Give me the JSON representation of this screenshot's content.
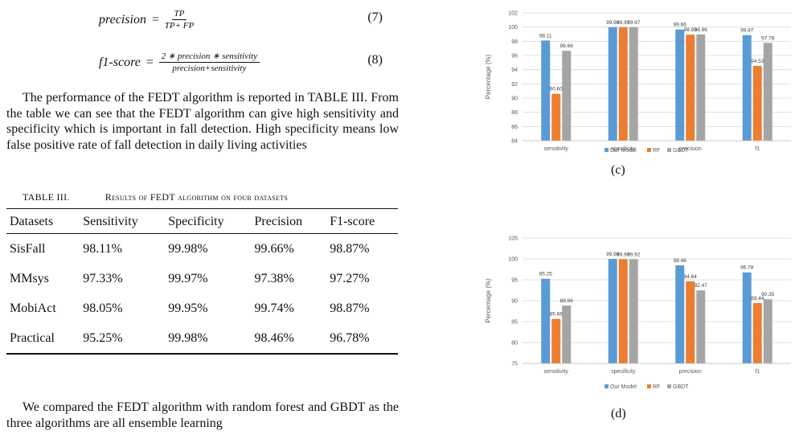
{
  "equations": [
    {
      "lhs": "precision",
      "numerator": "TP",
      "denominator": "TP+ FP",
      "number": "(7)"
    },
    {
      "lhs": "f1-score",
      "numerator": "2 ∗ precision ∗ sensitivity",
      "denominator": "precision+sensitivity",
      "number": "(8)"
    }
  ],
  "paragraph1": "The performance of the FEDT algorithm is reported in TABLE III. From the table we can see that the FEDT algorithm can give high sensitivity and specificity which is important in fall detection. High specificity means low false positive rate of fall detection in daily living activities",
  "table": {
    "label": "TABLE III.",
    "title": "Results of FEDT algorithm on four datasets",
    "headers": [
      "Datasets",
      "Sensitivity",
      "Specificity",
      "Precision",
      "F1-score"
    ],
    "rows": [
      [
        "SisFall",
        "98.11%",
        "99.98%",
        "99.66%",
        "98.87%"
      ],
      [
        "MMsys",
        "97.33%",
        "99.97%",
        "97.38%",
        "97.27%"
      ],
      [
        "MobiAct",
        "98.05%",
        "99.95%",
        "99.74%",
        "98.87%"
      ],
      [
        "Practical",
        "95.25%",
        "99.98%",
        "98.46%",
        "96.78%"
      ]
    ]
  },
  "paragraph2": "We compared the FEDT algorithm with random forest and GBDT as the three algorithms are all ensemble learning",
  "series_colors": {
    "Our Model": "#5b9bd5",
    "RF": "#ed7d31",
    "GBDT": "#a5a5a5"
  },
  "chart_data": [
    {
      "type": "bar",
      "caption": "(c)",
      "categories": [
        "sensitivity",
        "specificity",
        "precision",
        "f1"
      ],
      "series": [
        {
          "name": "Our Model",
          "values": [
            98.11,
            99.98,
            99.66,
            98.87
          ]
        },
        {
          "name": "RF",
          "values": [
            90.6,
            99.97,
            98.93,
            94.53
          ]
        },
        {
          "name": "GBDT",
          "values": [
            96.66,
            99.97,
            98.96,
            97.78
          ]
        }
      ],
      "value_labels": [
        [
          "98.11",
          "99.98",
          "99.66",
          "98.87"
        ],
        [
          "90.60",
          "99.97",
          "98.93",
          "94.53"
        ],
        [
          "96.66",
          "99.97",
          "98.96",
          "97.78"
        ]
      ],
      "ylabel": "Percentage (%)",
      "ylim": [
        84,
        102
      ],
      "yticks": [
        84,
        86,
        88,
        90,
        92,
        94,
        96,
        98,
        100,
        102
      ],
      "grid": true,
      "legend_position": "bottom-center"
    },
    {
      "type": "bar",
      "caption": "(d)",
      "categories": [
        "sensitivity",
        "specificity",
        "precision",
        "f1"
      ],
      "series": [
        {
          "name": "Our Model",
          "values": [
            95.25,
            99.98,
            98.46,
            96.78
          ]
        },
        {
          "name": "RF",
          "values": [
            85.66,
            99.93,
            94.64,
            89.44
          ]
        },
        {
          "name": "GBDT",
          "values": [
            88.86,
            99.92,
            92.47,
            90.35
          ]
        }
      ],
      "value_labels": [
        [
          "95.25",
          "99.98",
          "98.46",
          "96.78"
        ],
        [
          "85.66",
          "99.93",
          "94.64",
          "89.44"
        ],
        [
          "88.86",
          "99.92",
          "92.47",
          "90.35"
        ]
      ],
      "ylabel": "Percentage (%)",
      "ylim": [
        75,
        105
      ],
      "yticks": [
        75,
        80,
        85,
        90,
        95,
        100,
        105
      ],
      "grid": true,
      "legend_position": "bottom-center"
    }
  ]
}
